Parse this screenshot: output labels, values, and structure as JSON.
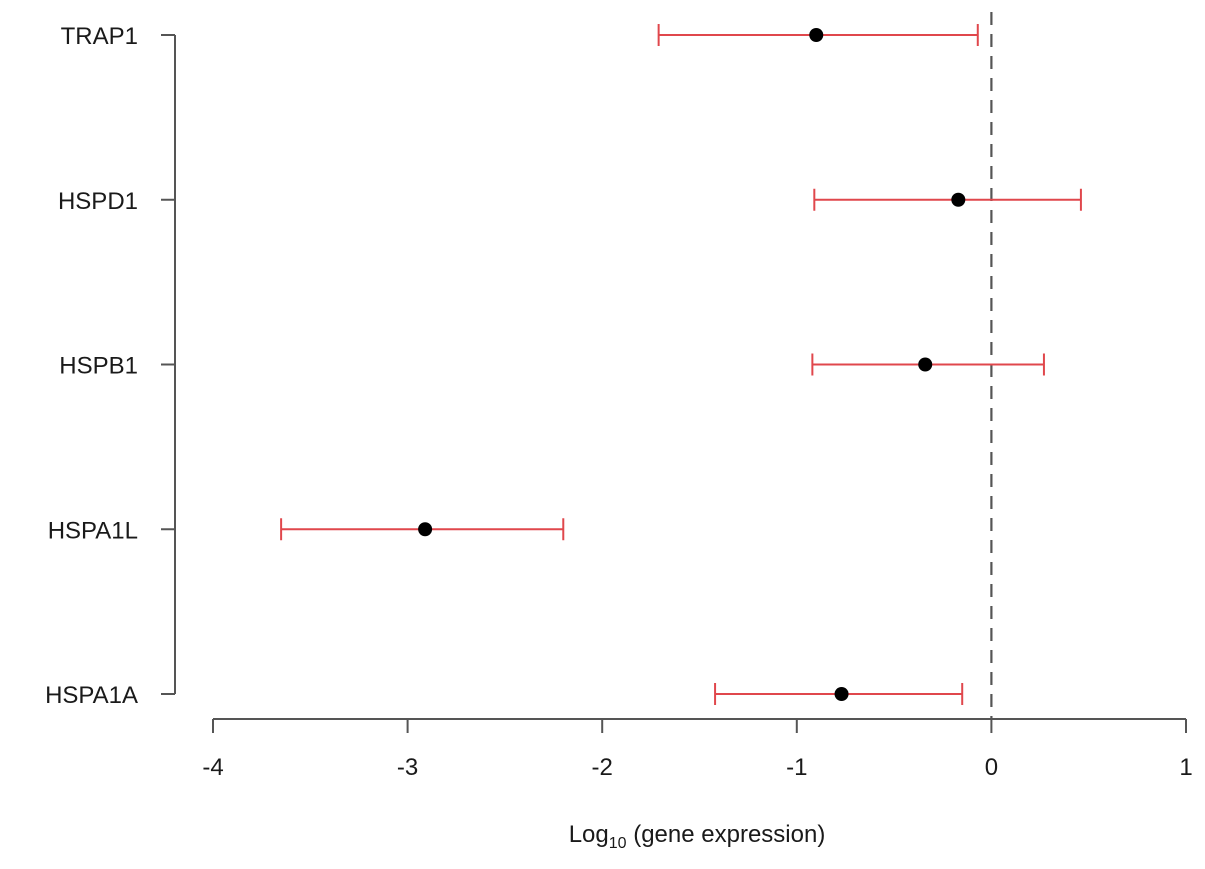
{
  "chart_data": {
    "type": "forest",
    "categories": [
      "TRAP1",
      "HSPD1",
      "HSPB1",
      "HSPA1L",
      "HSPA1A"
    ],
    "points": [
      {
        "label": "TRAP1",
        "estimate": -0.9,
        "lower": -1.71,
        "upper": -0.07
      },
      {
        "label": "HSPD1",
        "estimate": -0.17,
        "lower": -0.91,
        "upper": 0.46
      },
      {
        "label": "HSPB1",
        "estimate": -0.34,
        "lower": -0.92,
        "upper": 0.27
      },
      {
        "label": "HSPA1L",
        "estimate": -2.91,
        "lower": -3.65,
        "upper": -2.2
      },
      {
        "label": "HSPA1A",
        "estimate": -0.77,
        "lower": -1.42,
        "upper": -0.15
      }
    ],
    "x_ticks": [
      -4,
      -3,
      -2,
      -1,
      0,
      1
    ],
    "xlim": [
      -4,
      1
    ],
    "reference_line": 0,
    "xlabel": {
      "main": "Log",
      "subscript": "10",
      "rest": " (gene expression)"
    },
    "ylabel": "",
    "title": "",
    "grid": false,
    "colors": {
      "interval": "#e0474c",
      "point": "#000000",
      "axis": "#555555",
      "reference": "#555555"
    }
  }
}
